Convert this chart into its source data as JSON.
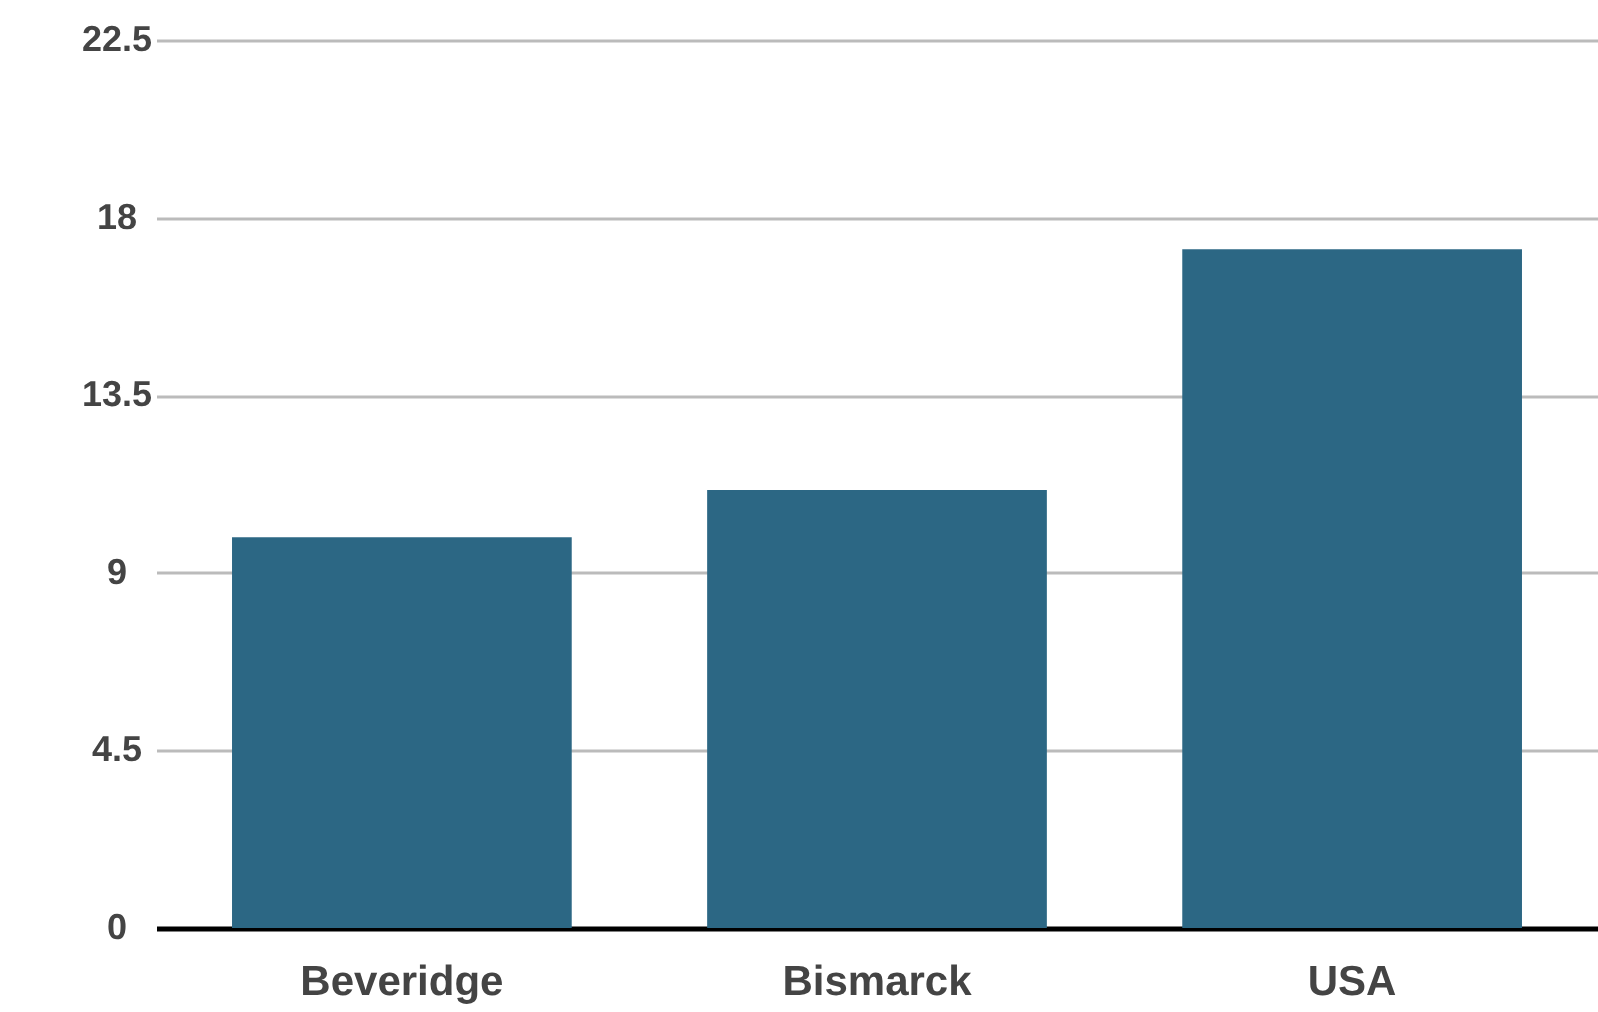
{
  "chart_data": {
    "type": "bar",
    "categories": [
      "Beveridge",
      "Bismarck",
      "USA"
    ],
    "values": [
      9.9,
      11.1,
      17.2
    ],
    "color": "#2c6784",
    "ylim": [
      0,
      22.5
    ],
    "yticks": [
      0,
      4.5,
      9,
      13.5,
      18,
      22.5
    ],
    "grid": "y"
  }
}
